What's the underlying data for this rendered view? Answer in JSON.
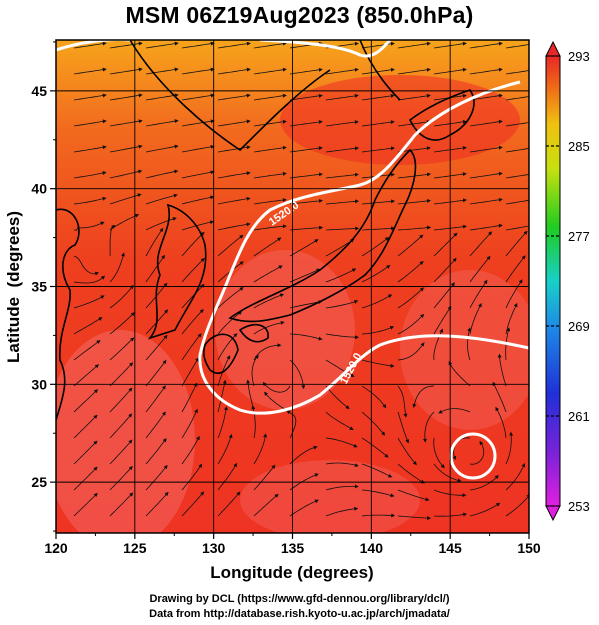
{
  "title": "MSM 06Z19Aug2023 (850.0hPa)",
  "map": {
    "xlabel": "Longitude (degrees)",
    "ylabel": "Latitude  (degrees)",
    "x_range": [
      120,
      150
    ],
    "y_range": [
      22.4,
      47.6
    ],
    "x_ticks": [
      "120",
      "125",
      "130",
      "135",
      "140",
      "145",
      "150"
    ],
    "y_ticks": [
      "25",
      "30",
      "35",
      "40",
      "45"
    ],
    "contour_label": "1520.0"
  },
  "colorbar": {
    "min": 253,
    "max": 293,
    "tick_labels": [
      "293",
      "285",
      "277",
      "269",
      "261",
      "253"
    ]
  },
  "credits": {
    "line1": "Drawing by DCL (https://www.gfd-dennou.org/library/dcl/)",
    "line2": "Data from http://database.rish.kyoto-u.ac.jp/arch/jmadata/"
  }
}
